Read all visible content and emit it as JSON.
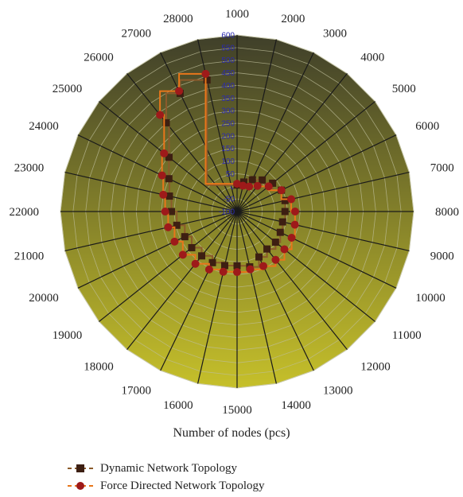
{
  "chart_data": {
    "type": "radar",
    "categories": [
      "1000",
      "2000",
      "3000",
      "4000",
      "5000",
      "6000",
      "7000",
      "8000",
      "9000",
      "10000",
      "11000",
      "12000",
      "13000",
      "14000",
      "15000",
      "16000",
      "17000",
      "18000",
      "19000",
      "20000",
      "21000",
      "22000",
      "23000",
      "24000",
      "25000",
      "26000",
      "27000",
      "28000"
    ],
    "xlabel": "Number of nodes (pcs)",
    "ylim": [
      -100,
      600
    ],
    "ticks": [
      "-100",
      "-50",
      "0",
      "50",
      "100",
      "150",
      "200",
      "250",
      "300",
      "350",
      "400",
      "450",
      "500",
      "550",
      "600"
    ],
    "grid": true,
    "legend_position": "bottom-left",
    "series": [
      {
        "name": "Dynamic Network Topology",
        "values": [
          5,
          20,
          40,
          60,
          80,
          95,
          95,
          90,
          85,
          90,
          95,
          90,
          100,
          125,
          115,
          120,
          125,
          125,
          130,
          130,
          145,
          160,
          175,
          200,
          245,
          350,
          420,
          435
        ],
        "color": "#8b5a2b",
        "marker": "square",
        "marker_color": "#3d1f12"
      },
      {
        "name": "Force Directed Network Topology",
        "values": [
          10,
          5,
          10,
          30,
          60,
          95,
          120,
          130,
          135,
          140,
          140,
          145,
          140,
          135,
          140,
          145,
          155,
          165,
          175,
          175,
          180,
          185,
          200,
          230,
          270,
          390,
          430,
          460
        ],
        "color": "#e8761a",
        "marker": "circle",
        "marker_color": "#9e1a1a"
      }
    ]
  },
  "colors": {
    "fill_top": "#3f3f2a",
    "fill_bottom": "#c6c02a",
    "grid": "#bdbd9a",
    "spoke": "#1a1a1a"
  }
}
